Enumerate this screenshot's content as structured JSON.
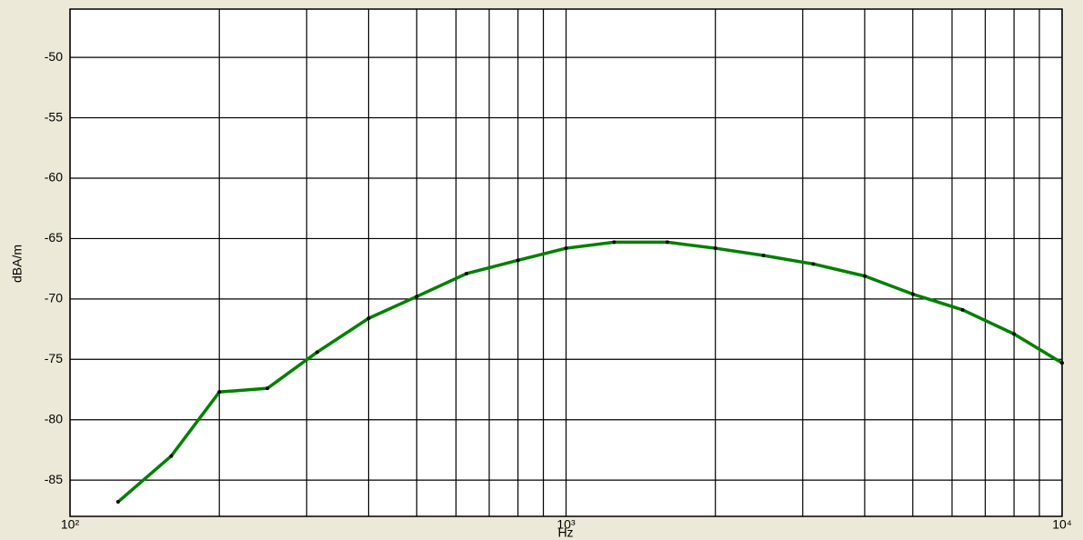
{
  "chart_data": {
    "type": "line",
    "x_label": "Hz",
    "y_label": "dBA/m",
    "x": [
      125,
      160,
      200,
      250,
      315,
      400,
      500,
      630,
      800,
      1000,
      1250,
      1600,
      2000,
      2500,
      3150,
      4000,
      5000,
      6300,
      8000,
      10000
    ],
    "series": [
      {
        "name": null,
        "color": "#008000",
        "values": [
          -86.8,
          -83.0,
          -77.7,
          -77.4,
          -74.4,
          -71.6,
          -69.8,
          -67.9,
          -66.8,
          -65.8,
          -65.3,
          -65.3,
          -65.8,
          -66.4,
          -67.1,
          -68.1,
          -69.6,
          -70.9,
          -72.9,
          -75.3
        ]
      }
    ],
    "xlog": true,
    "xlim": [
      100,
      10000
    ],
    "xticks": [
      {
        "value": 100,
        "label": "10²"
      },
      {
        "value": 1000,
        "label": "10³"
      },
      {
        "value": 10000,
        "label": "10⁴"
      }
    ],
    "xgrid": [
      200,
      300,
      400,
      500,
      600,
      700,
      800,
      900,
      2000,
      3000,
      4000,
      5000,
      6000,
      7000,
      8000,
      9000
    ],
    "ylim": [
      -88,
      -46
    ],
    "yticks": [
      -85,
      -80,
      -75,
      -70,
      -65,
      -60,
      -55,
      -50
    ],
    "grid": true
  }
}
